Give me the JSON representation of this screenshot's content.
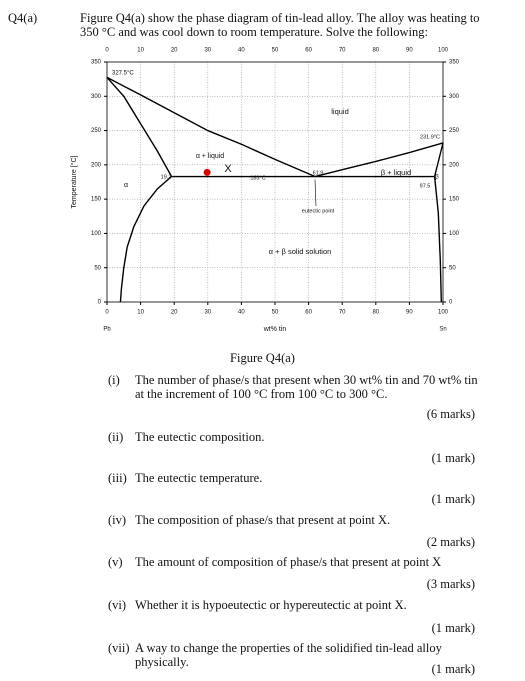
{
  "question": {
    "label": "Q4(a)",
    "text": "Figure Q4(a) show the phase diagram of tin-lead alloy. The alloy was heating to 350 °C and was cool down to room temperature. Solve the following:"
  },
  "chart_data": {
    "type": "line",
    "x_label": "wt% tin",
    "y_label": "Temperature [°C]",
    "x_end_labels": [
      "Pb",
      "Sn"
    ],
    "xlim": [
      0,
      100
    ],
    "xticks": [
      0,
      10,
      20,
      30,
      40,
      50,
      60,
      70,
      80,
      90,
      100
    ],
    "ylim": [
      0,
      350
    ],
    "yticks": [
      0,
      50,
      100,
      150,
      200,
      250,
      300,
      350
    ],
    "grid": true,
    "series": [
      {
        "color": "#000000",
        "x": [
          0,
          10,
          20,
          30,
          40,
          50,
          61.9
        ],
        "values": [
          327.5,
          302,
          276,
          250,
          230,
          208,
          183
        ]
      },
      {
        "color": "#000000",
        "x": [
          61.9,
          70,
          80,
          90,
          100
        ],
        "values": [
          183,
          193,
          205,
          218,
          231.9
        ]
      },
      {
        "color": "#000000",
        "x": [
          0,
          5,
          10,
          15,
          19.2
        ],
        "values": [
          327.5,
          300,
          260,
          220,
          183
        ]
      },
      {
        "color": "#000000",
        "x": [
          19.2,
          15,
          11,
          8,
          6,
          5,
          4.3,
          4
        ],
        "values": [
          183,
          165,
          140,
          110,
          80,
          50,
          20,
          0
        ]
      },
      {
        "color": "#000000",
        "x": [
          19.2,
          61.9,
          97.5
        ],
        "values": [
          183,
          183,
          183
        ]
      },
      {
        "color": "#000000",
        "x": [
          97.5,
          100
        ],
        "values": [
          183,
          231.9
        ]
      },
      {
        "color": "#000000",
        "x": [
          97.5,
          98.6,
          99.2,
          99.5
        ],
        "values": [
          183,
          130,
          60,
          0
        ]
      }
    ],
    "markers": [
      {
        "color": "#d40000",
        "x": 29.8,
        "y": 189
      }
    ],
    "annotations": [
      "327.5°C",
      "liquid",
      "231.9°C",
      "α + liquid",
      "X",
      "19.2",
      "183°C",
      "61.9",
      "β + liquid",
      "97.5",
      "β",
      "α",
      "eutectic point",
      "α + β solid solution"
    ]
  },
  "caption": "Figure Q4(a)",
  "items": [
    {
      "num": "(i)",
      "text": "The number of phase/s that present when 30 wt% tin and 70 wt% tin at the increment of 100 °C from 100 °C to 300 °C.",
      "marks": "(6 marks)"
    },
    {
      "num": "(ii)",
      "text": "The eutectic composition.",
      "marks": "(1 mark)"
    },
    {
      "num": "(iii)",
      "text": "The eutectic temperature.",
      "marks": "(1 mark)"
    },
    {
      "num": "(iv)",
      "text": "The composition of phase/s that present at point X.",
      "marks": "(2 marks)"
    },
    {
      "num": "(v)",
      "text": "The amount of composition of phase/s that present at point X",
      "marks": "(3 marks)"
    },
    {
      "num": "(vi)",
      "text": "Whether it is hypoeutectic or hypereutectic at point X.",
      "marks": "(1 mark)"
    },
    {
      "num": "(vii)",
      "text": "A way to change the properties of the solidified tin-lead alloy physically.",
      "marks": "(1 mark)"
    }
  ]
}
